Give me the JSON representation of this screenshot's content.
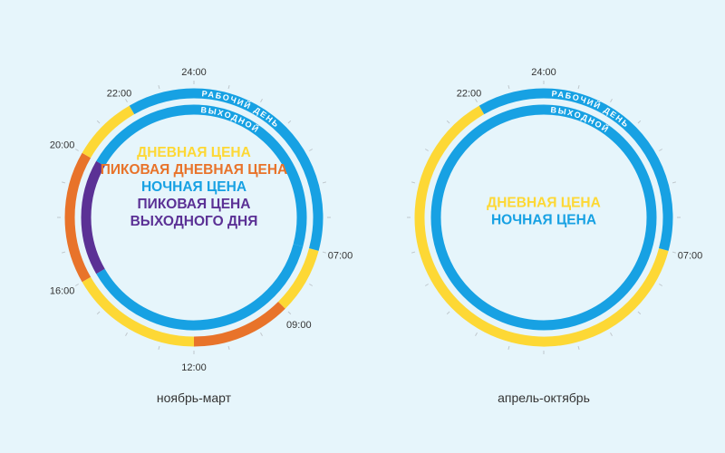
{
  "colors": {
    "day": "#fdd835",
    "peak_day": "#e8732a",
    "night": "#17a1e3",
    "weekend_peak": "#5b3195",
    "background": "#e6f5fb",
    "tick": "#bfc7cc"
  },
  "ring_labels": {
    "workday": "РАБОЧИЙ ДЕНЬ",
    "weekend": "ВЫХОДНОЙ"
  },
  "diagrams": [
    {
      "caption": "ноябрь-март",
      "legend": [
        {
          "text": "ДНЕВНАЯ ЦЕНА",
          "color": "#fdd835"
        },
        {
          "text": "ПИКОВАЯ ДНЕВНАЯ ЦЕНА",
          "color": "#e8732a"
        },
        {
          "text": "НОЧНАЯ ЦЕНА",
          "color": "#17a1e3"
        },
        {
          "text": "ПИКОВАЯ ЦЕНА",
          "color": "#5b3195"
        },
        {
          "text": "ВЫХОДНОГО ДНЯ",
          "color": "#5b3195"
        }
      ],
      "time_labels": [
        "24:00",
        "22:00",
        "20:00",
        "16:00",
        "12:00",
        "09:00",
        "07:00"
      ],
      "workday_segments": [
        {
          "from": 7,
          "to": 9,
          "tariff": "day"
        },
        {
          "from": 9,
          "to": 12,
          "tariff": "peak_day"
        },
        {
          "from": 12,
          "to": 16,
          "tariff": "day"
        },
        {
          "from": 16,
          "to": 20,
          "tariff": "peak_day"
        },
        {
          "from": 20,
          "to": 22,
          "tariff": "day"
        },
        {
          "from": 22,
          "to": 31,
          "tariff": "night"
        }
      ],
      "weekend_segments": [
        {
          "from": 7,
          "to": 16,
          "tariff": "night"
        },
        {
          "from": 16,
          "to": 20,
          "tariff": "weekend_peak"
        },
        {
          "from": 20,
          "to": 31,
          "tariff": "night"
        }
      ]
    },
    {
      "caption": "апрель-октябрь",
      "legend": [
        {
          "text": "ДНЕВНАЯ ЦЕНА",
          "color": "#fdd835"
        },
        {
          "text": "НОЧНАЯ ЦЕНА",
          "color": "#17a1e3"
        }
      ],
      "time_labels": [
        "24:00",
        "22:00",
        "07:00"
      ],
      "workday_segments": [
        {
          "from": 7,
          "to": 22,
          "tariff": "day"
        },
        {
          "from": 22,
          "to": 31,
          "tariff": "night"
        }
      ],
      "weekend_segments": [
        {
          "from": 0,
          "to": 24,
          "tariff": "night"
        }
      ]
    }
  ]
}
